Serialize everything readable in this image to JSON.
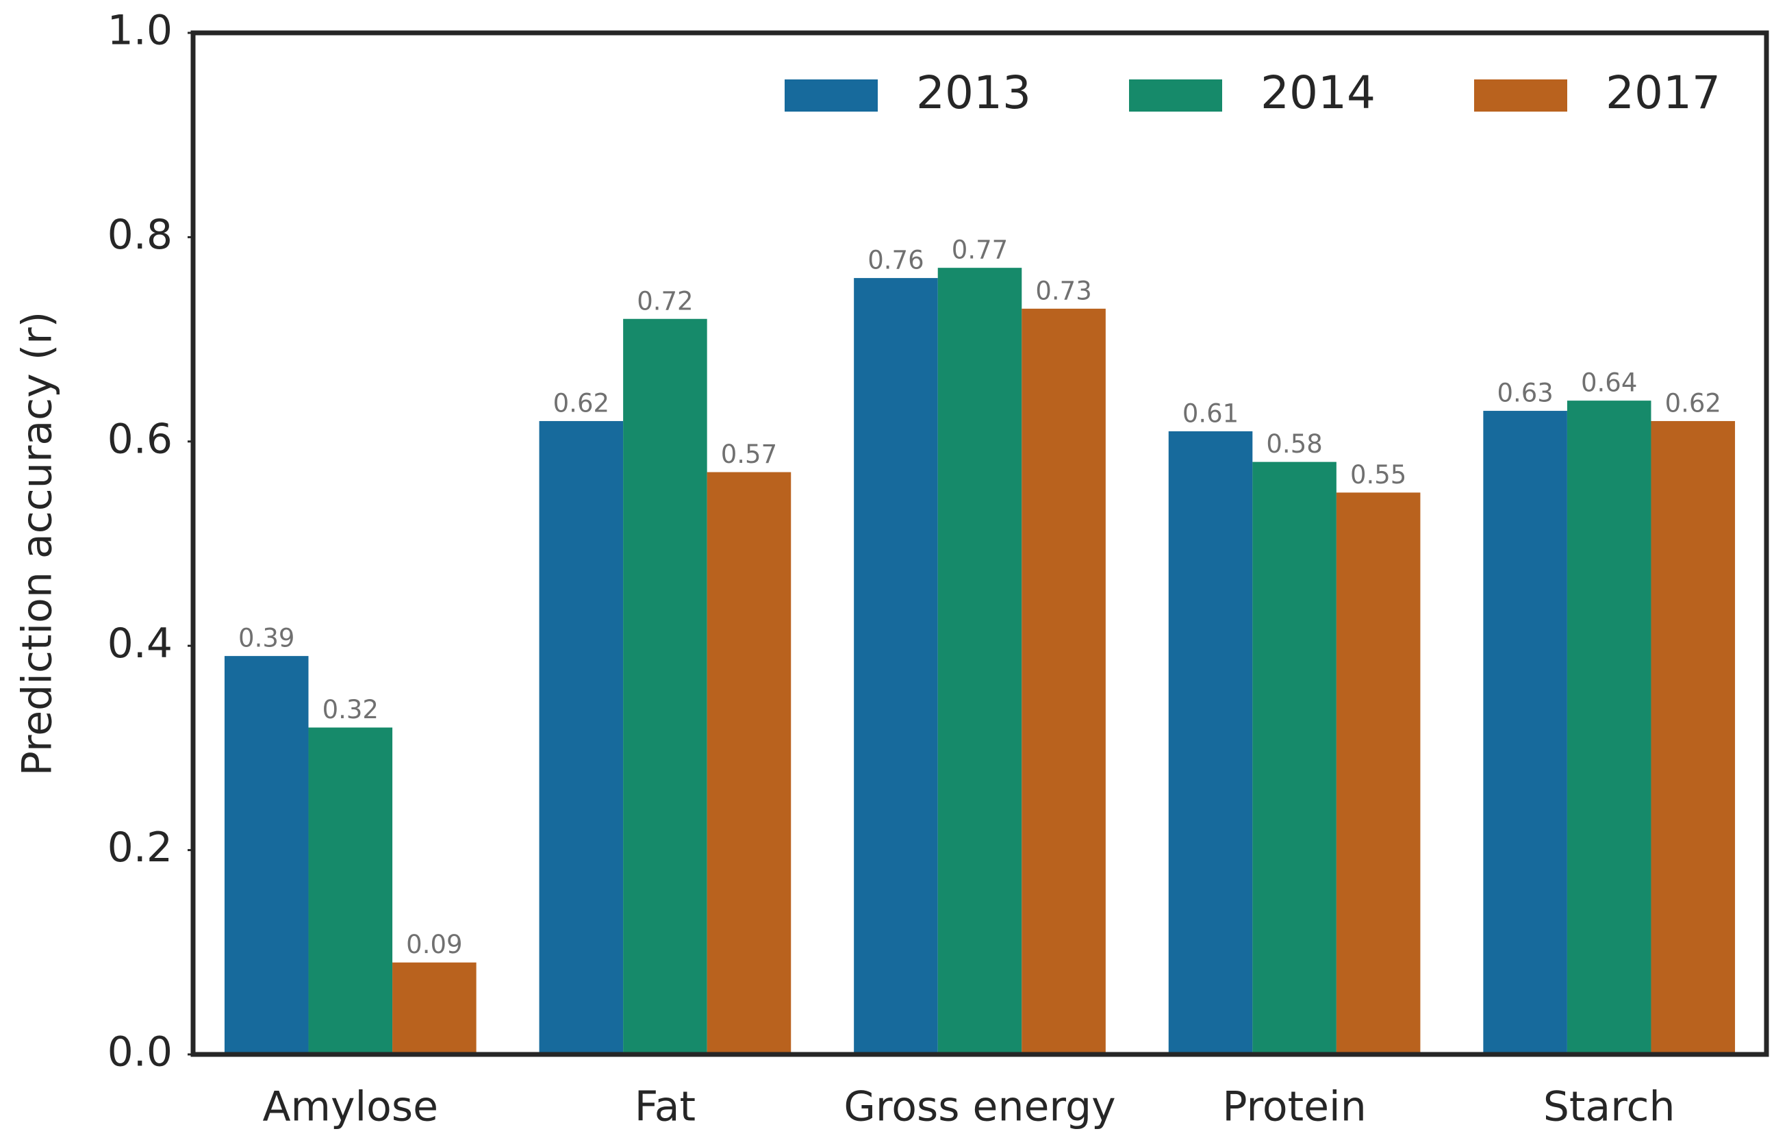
{
  "chart_data": {
    "type": "bar",
    "y_label": "Prediction accuracy (r)",
    "categories": [
      "Amylose",
      "Fat",
      "Gross energy",
      "Protein",
      "Starch"
    ],
    "series": [
      {
        "name": "2013",
        "color": "#176a9c",
        "values": [
          0.39,
          0.62,
          0.76,
          0.61,
          0.63
        ]
      },
      {
        "name": "2014",
        "color": "#168a6a",
        "values": [
          0.32,
          0.72,
          0.77,
          0.58,
          0.64
        ]
      },
      {
        "name": "2017",
        "color": "#b9621e",
        "values": [
          0.09,
          0.57,
          0.73,
          0.55,
          0.62
        ]
      }
    ],
    "ylim": [
      0,
      1
    ],
    "yticks": [
      {
        "value": 0,
        "label": "0.0"
      },
      0.2,
      0.4,
      0.6,
      0.8,
      {
        "value": 1,
        "label": "1.0"
      }
    ],
    "grid": false,
    "legend": "upper right"
  }
}
